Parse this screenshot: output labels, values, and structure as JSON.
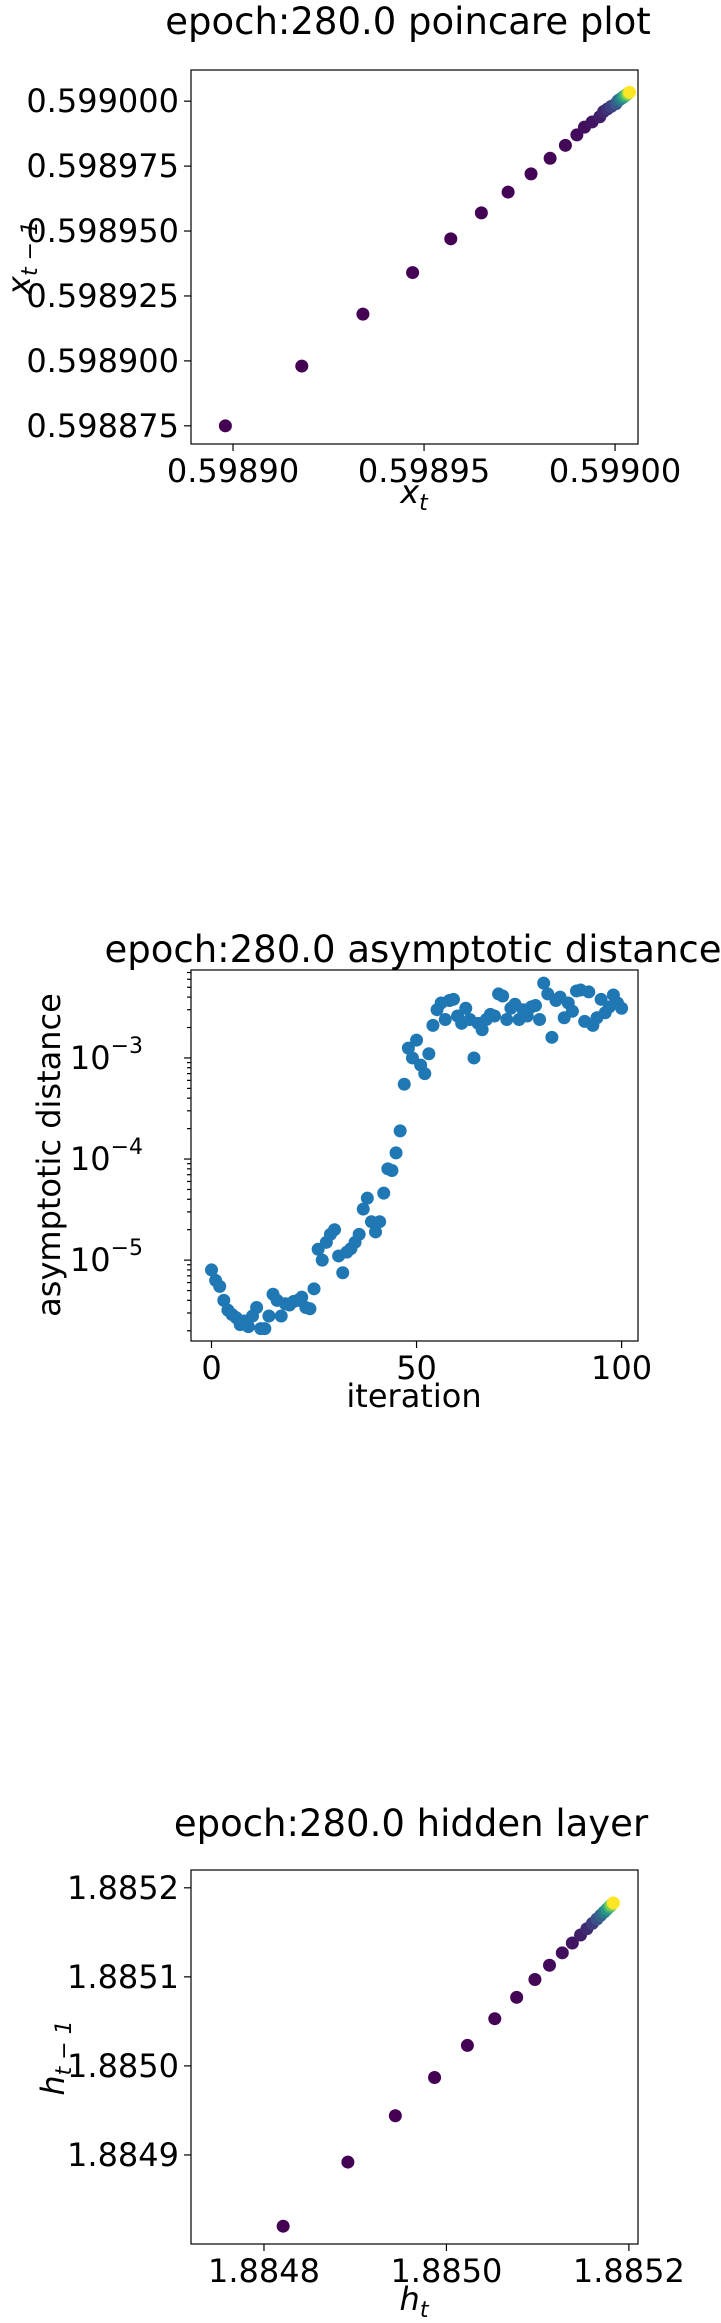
{
  "chart_data": [
    {
      "type": "scatter",
      "title": "epoch:280.0 poincare plot",
      "xlabel": "x_t",
      "ylabel": "x_{t-1}",
      "xlim": [
        0.598889,
        0.599006
      ],
      "ylim": [
        0.598868,
        0.599012
      ],
      "xticks": [
        0.5989,
        0.59895,
        0.599
      ],
      "xtick_labels": [
        "0.59890",
        "0.59895",
        "0.59900"
      ],
      "yticks": [
        0.598875,
        0.5989,
        0.598925,
        0.59895,
        0.598975,
        0.599
      ],
      "ytick_labels": [
        "0.598875",
        "0.598900",
        "0.598925",
        "0.598950",
        "0.598975",
        "0.599000"
      ],
      "colormap": "viridis",
      "grid": false,
      "x": [
        0.598898,
        0.598918,
        0.598934,
        0.598947,
        0.598957,
        0.598965,
        0.598972,
        0.598978,
        0.598983,
        0.598987,
        0.59899,
        0.598992,
        0.598994,
        0.598996,
        0.598997,
        0.598998,
        0.598999,
        0.5990002,
        0.5990008,
        0.5990014,
        0.599002,
        0.5990025,
        0.599003,
        0.5990034,
        0.5990038
      ],
      "y": [
        0.598875,
        0.598898,
        0.598918,
        0.598934,
        0.598947,
        0.598957,
        0.598965,
        0.598972,
        0.598978,
        0.598983,
        0.598987,
        0.59899,
        0.598992,
        0.598994,
        0.598996,
        0.598997,
        0.598998,
        0.598999,
        0.5990002,
        0.5990008,
        0.5990014,
        0.599002,
        0.5990025,
        0.599003,
        0.5990034
      ]
    },
    {
      "type": "scatter",
      "title": "epoch:280.0 asymptotic distance",
      "xlabel": "iteration",
      "ylabel": "asymptotic distance",
      "yscale": "log",
      "xlim": [
        -5,
        104
      ],
      "ylim_log10": [
        -5.8,
        -2.13
      ],
      "xticks": [
        0,
        50,
        100
      ],
      "xtick_labels": [
        "0",
        "50",
        "100"
      ],
      "yticks": [
        1e-05,
        0.0001,
        0.001
      ],
      "ytick_labels": [
        "10",
        "10",
        "10"
      ],
      "ytick_exponents": [
        "−5",
        "−4",
        "−3"
      ],
      "color": "#1f77b4",
      "grid": false,
      "x": [
        0,
        1,
        2,
        3,
        4,
        5,
        6,
        7,
        8,
        9,
        10,
        11,
        12,
        13,
        14,
        15,
        16,
        17,
        18,
        19,
        20,
        21,
        22,
        23,
        24,
        25,
        26,
        27,
        28,
        29,
        30,
        31,
        32,
        33,
        34,
        35,
        36,
        37,
        38,
        39,
        40,
        41,
        42,
        43,
        44,
        45,
        46,
        47,
        48,
        49,
        50,
        51,
        52,
        53,
        54,
        55,
        56,
        57,
        58,
        59,
        60,
        61,
        62,
        63,
        64,
        65,
        66,
        67,
        68,
        69,
        70,
        71,
        72,
        73,
        74,
        75,
        76,
        77,
        78,
        79,
        80,
        81,
        82,
        83,
        84,
        85,
        86,
        87,
        88,
        89,
        90,
        91,
        92,
        93,
        94,
        95,
        96,
        97,
        98,
        99,
        100
      ],
      "y": [
        8e-06,
        6.3e-06,
        5.5e-06,
        4e-06,
        3.2e-06,
        2.9e-06,
        2.7e-06,
        2.3e-06,
        2.5e-06,
        2.2e-06,
        2.8e-06,
        3.4e-06,
        2.1e-06,
        2.1e-06,
        2.8e-06,
        4.6e-06,
        4e-06,
        2.8e-06,
        3.7e-06,
        3.6e-06,
        3.9e-06,
        4e-06,
        4.3e-06,
        3.4e-06,
        3.3e-06,
        5.2e-06,
        1.28e-05,
        1e-05,
        1.5e-05,
        1.8e-05,
        2e-05,
        1.1e-05,
        7.5e-06,
        1.2e-05,
        1.3e-05,
        1.5e-05,
        1.8e-05,
        3.2e-05,
        4.1e-05,
        2.4e-05,
        1.9e-05,
        2.4e-05,
        4.6e-05,
        8e-05,
        7.7e-05,
        0.000115,
        0.00019,
        0.00055,
        0.00125,
        0.001,
        0.0015,
        0.00085,
        0.0007,
        0.0011,
        0.0021,
        0.003,
        0.0035,
        0.0024,
        0.0037,
        0.0038,
        0.0026,
        0.0022,
        0.0031,
        0.0024,
        0.001,
        0.0022,
        0.0019,
        0.0024,
        0.0027,
        0.0026,
        0.0043,
        0.0041,
        0.0024,
        0.0031,
        0.0034,
        0.0024,
        0.003,
        0.0026,
        0.0032,
        0.0033,
        0.0024,
        0.0055,
        0.0043,
        0.0016,
        0.0037,
        0.004,
        0.0025,
        0.0035,
        0.0029,
        0.0046,
        0.0047,
        0.0023,
        0.0045,
        0.0021,
        0.0025,
        0.0038,
        0.0028,
        0.0032,
        0.0042,
        0.0035,
        0.0031
      ]
    },
    {
      "type": "scatter",
      "title": "epoch:280.0 hidden layer",
      "xlabel": "h_t",
      "ylabel": "h_{t-1}",
      "xlim": [
        1.88472,
        1.88521
      ],
      "ylim": [
        1.8848,
        1.88522
      ],
      "xticks": [
        1.8848,
        1.885,
        1.8852
      ],
      "xtick_labels": [
        "1.8848",
        "1.8850",
        "1.8852"
      ],
      "yticks": [
        1.8849,
        1.885,
        1.8851,
        1.8852
      ],
      "ytick_labels": [
        "1.8849",
        "1.8850",
        "1.8851",
        "1.8852"
      ],
      "colormap": "viridis",
      "grid": false,
      "x": [
        1.884821,
        1.884892,
        1.884944,
        1.884987,
        1.885023,
        1.885053,
        1.885077,
        1.885097,
        1.885113,
        1.885127,
        1.885138,
        1.885147,
        1.885154,
        1.88516,
        1.885165,
        1.885169,
        1.885173,
        1.885176,
        1.885179,
        1.885181,
        1.885183
      ],
      "y": [
        1.88482,
        1.884892,
        1.884944,
        1.884987,
        1.885023,
        1.885053,
        1.885077,
        1.885097,
        1.885113,
        1.885127,
        1.885138,
        1.885147,
        1.885154,
        1.88516,
        1.885165,
        1.885169,
        1.885173,
        1.885176,
        1.885179,
        1.885181,
        1.885183
      ]
    }
  ]
}
